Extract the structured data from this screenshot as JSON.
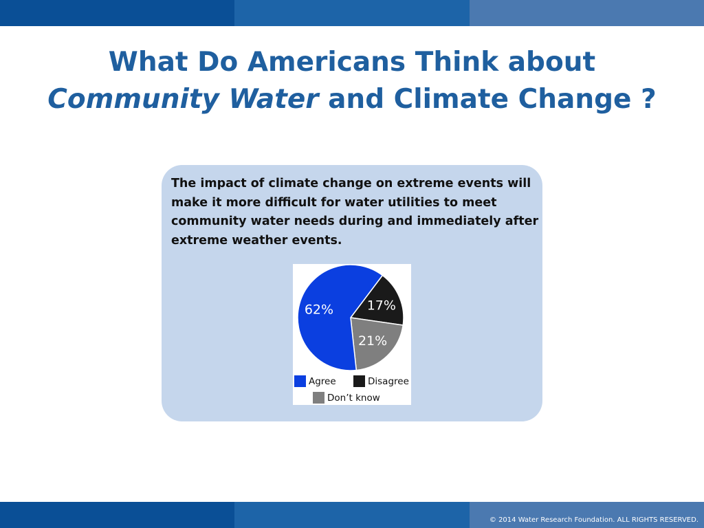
{
  "slide": {
    "title_line1": "What Do Americans Think about",
    "title_line2_italic": "Community Water",
    "title_line2_rest": " and Climate Change ?",
    "statement": "The impact of climate change on extreme events will make it more difficult for water utilities to meet community water needs during and immediately after extreme weather events.",
    "copyright": "© 2014 Water Research Foundation. ALL RIGHTS RESERVED."
  },
  "chart_data": {
    "type": "pie",
    "title": "",
    "slices": [
      {
        "name": "Agree",
        "value": 62,
        "label": "62%",
        "color": "#0b3fe0"
      },
      {
        "name": "Disagree",
        "value": 17,
        "label": "17%",
        "color": "#1a1a1a"
      },
      {
        "name": "Don’t know",
        "value": 21,
        "label": "21%",
        "color": "#7f7f7f"
      }
    ],
    "legend": {
      "placement": "bottom",
      "items": [
        {
          "label": "Agree",
          "color": "#0b3fe0"
        },
        {
          "label": "Disagree",
          "color": "#1a1a1a"
        },
        {
          "label": "Don’t know",
          "color": "#7f7f7f"
        }
      ]
    }
  },
  "colors": {
    "title": "#1f5f9f",
    "panel": "#c5d6ec",
    "band_dark": "#0a4f96",
    "band_mid": "#1d64a8",
    "band_light": "#4b79b0"
  }
}
